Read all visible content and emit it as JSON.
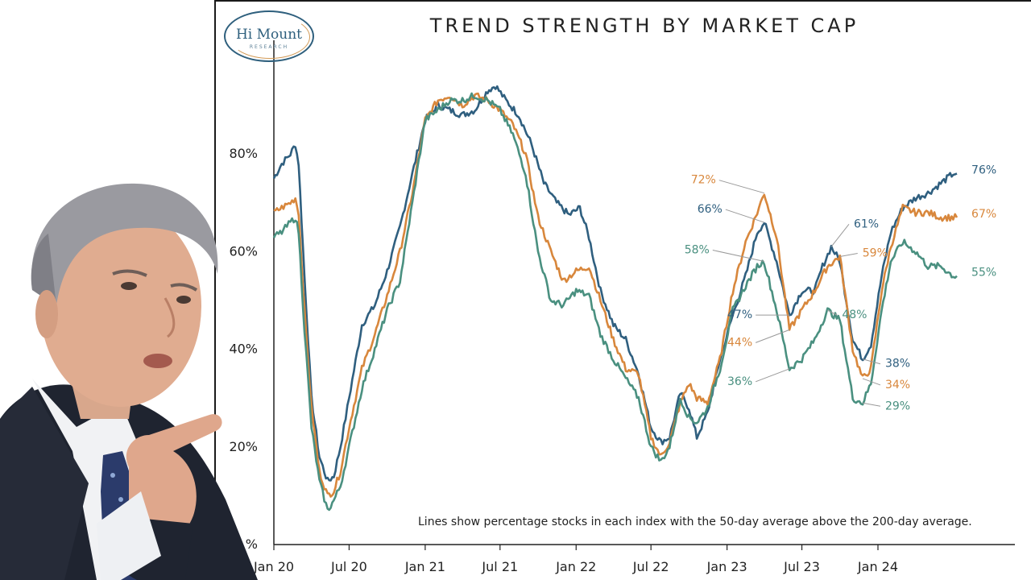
{
  "logo": {
    "name": "Hi Mount",
    "sub": "RESEARCH"
  },
  "note": "Lines show percentage stocks in each index with the 50-day average above the 200-day average.",
  "colors": {
    "blue": "#2f5f7f",
    "orange": "#d8873c",
    "green": "#4a9080",
    "axis": "#222222"
  },
  "photo": {
    "description": "Man in dark suit with blue patterned tie, pointing finger"
  },
  "chart_data": {
    "type": "line",
    "title": "TREND STRENGTH BY MARKET CAP",
    "xlabel": "",
    "ylabel": "",
    "ylim": [
      0,
      100
    ],
    "xlim": [
      "2020-01-01",
      "2024-09-20"
    ],
    "y_ticks": [
      "80%",
      "60%",
      "40%",
      "20%",
      "%"
    ],
    "x_ticks": [
      "Jan 20",
      "Jul 20",
      "Jan 21",
      "Jul 21",
      "Jan 22",
      "Jul 22",
      "Jan 23",
      "Jul 23",
      "Jan 24"
    ],
    "grid": false,
    "series": [
      {
        "key": "blue",
        "values": [
          [
            "2020-01-01",
            75
          ],
          [
            "2020-01-20",
            78
          ],
          [
            "2020-02-10",
            80
          ],
          [
            "2020-02-22",
            82
          ],
          [
            "2020-03-01",
            78
          ],
          [
            "2020-03-15",
            55
          ],
          [
            "2020-04-01",
            30
          ],
          [
            "2020-04-20",
            18
          ],
          [
            "2020-05-10",
            13
          ],
          [
            "2020-05-25",
            14
          ],
          [
            "2020-06-10",
            20
          ],
          [
            "2020-07-01",
            30
          ],
          [
            "2020-08-01",
            45
          ],
          [
            "2020-09-01",
            49
          ],
          [
            "2020-10-01",
            56
          ],
          [
            "2020-11-01",
            65
          ],
          [
            "2020-12-01",
            76
          ],
          [
            "2021-01-01",
            87
          ],
          [
            "2021-02-01",
            90
          ],
          [
            "2021-03-01",
            89
          ],
          [
            "2021-04-01",
            88
          ],
          [
            "2021-05-01",
            89
          ],
          [
            "2021-06-01",
            93
          ],
          [
            "2021-06-20",
            94
          ],
          [
            "2021-07-15",
            91
          ],
          [
            "2021-08-15",
            88
          ],
          [
            "2021-09-15",
            82
          ],
          [
            "2021-10-15",
            74
          ],
          [
            "2021-11-15",
            70
          ],
          [
            "2021-12-15",
            67.5
          ],
          [
            "2022-01-10",
            69
          ],
          [
            "2022-02-01",
            63
          ],
          [
            "2022-03-01",
            52
          ],
          [
            "2022-04-01",
            45
          ],
          [
            "2022-05-01",
            42
          ],
          [
            "2022-06-01",
            35
          ],
          [
            "2022-07-01",
            24
          ],
          [
            "2022-07-25",
            21
          ],
          [
            "2022-08-15",
            22
          ],
          [
            "2022-09-10",
            31
          ],
          [
            "2022-10-01",
            28
          ],
          [
            "2022-10-20",
            22
          ],
          [
            "2022-11-15",
            27
          ],
          [
            "2022-12-15",
            38
          ],
          [
            "2023-01-15",
            47
          ],
          [
            "2023-02-15",
            55
          ],
          [
            "2023-03-15",
            64
          ],
          [
            "2023-04-01",
            66
          ],
          [
            "2023-05-01",
            58
          ],
          [
            "2023-06-01",
            47
          ],
          [
            "2023-07-01",
            52
          ],
          [
            "2023-08-01",
            52
          ],
          [
            "2023-08-20",
            57
          ],
          [
            "2023-09-10",
            61
          ],
          [
            "2023-10-01",
            58
          ],
          [
            "2023-11-01",
            42
          ],
          [
            "2023-11-25",
            38
          ],
          [
            "2023-12-15",
            41
          ],
          [
            "2024-01-10",
            55
          ],
          [
            "2024-02-01",
            64
          ],
          [
            "2024-03-01",
            69
          ],
          [
            "2024-04-01",
            71
          ],
          [
            "2024-05-01",
            72
          ],
          [
            "2024-06-01",
            74
          ],
          [
            "2024-07-01",
            76
          ],
          [
            "2024-07-10",
            76
          ]
        ]
      },
      {
        "key": "orange",
        "values": [
          [
            "2020-01-01",
            68
          ],
          [
            "2020-01-20",
            69
          ],
          [
            "2020-02-10",
            70
          ],
          [
            "2020-02-22",
            71
          ],
          [
            "2020-03-01",
            68
          ],
          [
            "2020-03-15",
            48
          ],
          [
            "2020-04-01",
            28
          ],
          [
            "2020-04-20",
            15
          ],
          [
            "2020-05-10",
            10
          ],
          [
            "2020-05-25",
            11
          ],
          [
            "2020-06-10",
            15
          ],
          [
            "2020-07-01",
            24
          ],
          [
            "2020-08-01",
            36
          ],
          [
            "2020-09-01",
            43
          ],
          [
            "2020-10-01",
            51
          ],
          [
            "2020-11-01",
            60
          ],
          [
            "2020-12-01",
            72
          ],
          [
            "2021-01-01",
            87
          ],
          [
            "2021-02-01",
            91
          ],
          [
            "2021-03-01",
            92
          ],
          [
            "2021-04-01",
            90
          ],
          [
            "2021-05-01",
            92
          ],
          [
            "2021-06-01",
            91
          ],
          [
            "2021-07-01",
            89
          ],
          [
            "2021-08-01",
            86
          ],
          [
            "2021-09-01",
            80
          ],
          [
            "2021-10-01",
            67
          ],
          [
            "2021-11-01",
            60
          ],
          [
            "2021-12-01",
            54
          ],
          [
            "2022-01-01",
            56
          ],
          [
            "2022-02-01",
            57
          ],
          [
            "2022-03-01",
            50
          ],
          [
            "2022-04-01",
            42
          ],
          [
            "2022-05-01",
            36
          ],
          [
            "2022-06-01",
            35
          ],
          [
            "2022-07-01",
            22
          ],
          [
            "2022-07-25",
            18
          ],
          [
            "2022-08-15",
            21
          ],
          [
            "2022-09-10",
            29
          ],
          [
            "2022-10-01",
            33
          ],
          [
            "2022-10-20",
            30
          ],
          [
            "2022-11-15",
            29
          ],
          [
            "2022-12-15",
            38
          ],
          [
            "2023-01-15",
            52
          ],
          [
            "2023-02-15",
            62
          ],
          [
            "2023-03-15",
            68
          ],
          [
            "2023-04-01",
            72
          ],
          [
            "2023-05-01",
            63
          ],
          [
            "2023-06-01",
            44
          ],
          [
            "2023-07-01",
            48
          ],
          [
            "2023-08-01",
            52
          ],
          [
            "2023-09-01",
            57
          ],
          [
            "2023-10-01",
            59
          ],
          [
            "2023-11-01",
            40
          ],
          [
            "2023-11-25",
            34
          ],
          [
            "2023-12-15",
            36
          ],
          [
            "2024-01-10",
            52
          ],
          [
            "2024-02-01",
            61
          ],
          [
            "2024-03-01",
            69
          ],
          [
            "2024-04-01",
            68
          ],
          [
            "2024-05-01",
            68
          ],
          [
            "2024-06-01",
            67
          ],
          [
            "2024-07-01",
            67
          ],
          [
            "2024-07-10",
            67
          ]
        ]
      },
      {
        "key": "green",
        "values": [
          [
            "2020-01-01",
            63
          ],
          [
            "2020-01-20",
            64
          ],
          [
            "2020-02-10",
            66
          ],
          [
            "2020-02-22",
            67
          ],
          [
            "2020-03-01",
            64
          ],
          [
            "2020-03-15",
            44
          ],
          [
            "2020-04-01",
            24
          ],
          [
            "2020-04-20",
            13
          ],
          [
            "2020-05-10",
            7
          ],
          [
            "2020-05-25",
            9
          ],
          [
            "2020-06-10",
            12
          ],
          [
            "2020-07-01",
            20
          ],
          [
            "2020-08-01",
            32
          ],
          [
            "2020-09-01",
            40
          ],
          [
            "2020-10-01",
            48
          ],
          [
            "2020-11-01",
            54
          ],
          [
            "2020-12-01",
            70
          ],
          [
            "2021-01-01",
            87
          ],
          [
            "2021-02-01",
            89
          ],
          [
            "2021-03-01",
            91
          ],
          [
            "2021-04-01",
            91
          ],
          [
            "2021-05-01",
            92
          ],
          [
            "2021-06-01",
            91
          ],
          [
            "2021-07-01",
            89
          ],
          [
            "2021-08-01",
            84
          ],
          [
            "2021-09-01",
            76
          ],
          [
            "2021-10-01",
            60
          ],
          [
            "2021-11-01",
            50
          ],
          [
            "2021-12-01",
            49
          ],
          [
            "2022-01-01",
            52
          ],
          [
            "2022-02-01",
            51
          ],
          [
            "2022-03-01",
            43
          ],
          [
            "2022-04-01",
            38
          ],
          [
            "2022-05-01",
            34
          ],
          [
            "2022-06-01",
            30
          ],
          [
            "2022-07-01",
            20
          ],
          [
            "2022-07-25",
            17
          ],
          [
            "2022-08-15",
            20
          ],
          [
            "2022-09-10",
            30
          ],
          [
            "2022-10-01",
            26
          ],
          [
            "2022-10-20",
            25
          ],
          [
            "2022-11-15",
            28
          ],
          [
            "2022-12-15",
            36
          ],
          [
            "2023-01-15",
            48
          ],
          [
            "2023-02-15",
            53
          ],
          [
            "2023-03-15",
            57
          ],
          [
            "2023-04-01",
            58
          ],
          [
            "2023-05-01",
            48
          ],
          [
            "2023-06-01",
            36
          ],
          [
            "2023-07-01",
            38
          ],
          [
            "2023-08-01",
            42
          ],
          [
            "2023-09-01",
            48
          ],
          [
            "2023-10-01",
            46
          ],
          [
            "2023-11-01",
            30
          ],
          [
            "2023-11-25",
            29
          ],
          [
            "2023-12-15",
            33
          ],
          [
            "2024-01-10",
            48
          ],
          [
            "2024-02-01",
            58
          ],
          [
            "2024-03-01",
            62
          ],
          [
            "2024-04-01",
            60
          ],
          [
            "2024-05-01",
            57
          ],
          [
            "2024-06-01",
            57
          ],
          [
            "2024-07-01",
            55
          ],
          [
            "2024-07-10",
            55
          ]
        ]
      }
    ],
    "annotations": [
      {
        "text": "72%",
        "key": "orange",
        "at": [
          "2023-04-01",
          72
        ],
        "side": "left"
      },
      {
        "text": "66%",
        "key": "blue",
        "at": [
          "2023-04-01",
          66
        ],
        "side": "left"
      },
      {
        "text": "58%",
        "key": "green",
        "at": [
          "2023-04-01",
          58
        ],
        "side": "left"
      },
      {
        "text": "47%",
        "key": "blue",
        "at": [
          "2023-06-01",
          47
        ],
        "side": "left"
      },
      {
        "text": "44%",
        "key": "orange",
        "at": [
          "2023-06-01",
          44
        ],
        "side": "left"
      },
      {
        "text": "36%",
        "key": "green",
        "at": [
          "2023-06-01",
          36
        ],
        "side": "left"
      },
      {
        "text": "61%",
        "key": "blue",
        "at": [
          "2023-09-10",
          61
        ],
        "side": "right"
      },
      {
        "text": "59%",
        "key": "orange",
        "at": [
          "2023-10-01",
          59
        ],
        "side": "right"
      },
      {
        "text": "48%",
        "key": "green",
        "at": [
          "2023-09-01",
          48
        ],
        "side": "right"
      },
      {
        "text": "38%",
        "key": "blue",
        "at": [
          "2023-11-25",
          38
        ],
        "side": "right"
      },
      {
        "text": "34%",
        "key": "orange",
        "at": [
          "2023-11-25",
          34
        ],
        "side": "right"
      },
      {
        "text": "29%",
        "key": "green",
        "at": [
          "2023-11-25",
          29
        ],
        "side": "right"
      },
      {
        "text": "76%",
        "key": "blue",
        "at": [
          "2024-07-10",
          76
        ],
        "side": "end"
      },
      {
        "text": "67%",
        "key": "orange",
        "at": [
          "2024-07-10",
          67
        ],
        "side": "end"
      },
      {
        "text": "55%",
        "key": "green",
        "at": [
          "2024-07-10",
          55
        ],
        "side": "end"
      }
    ]
  }
}
